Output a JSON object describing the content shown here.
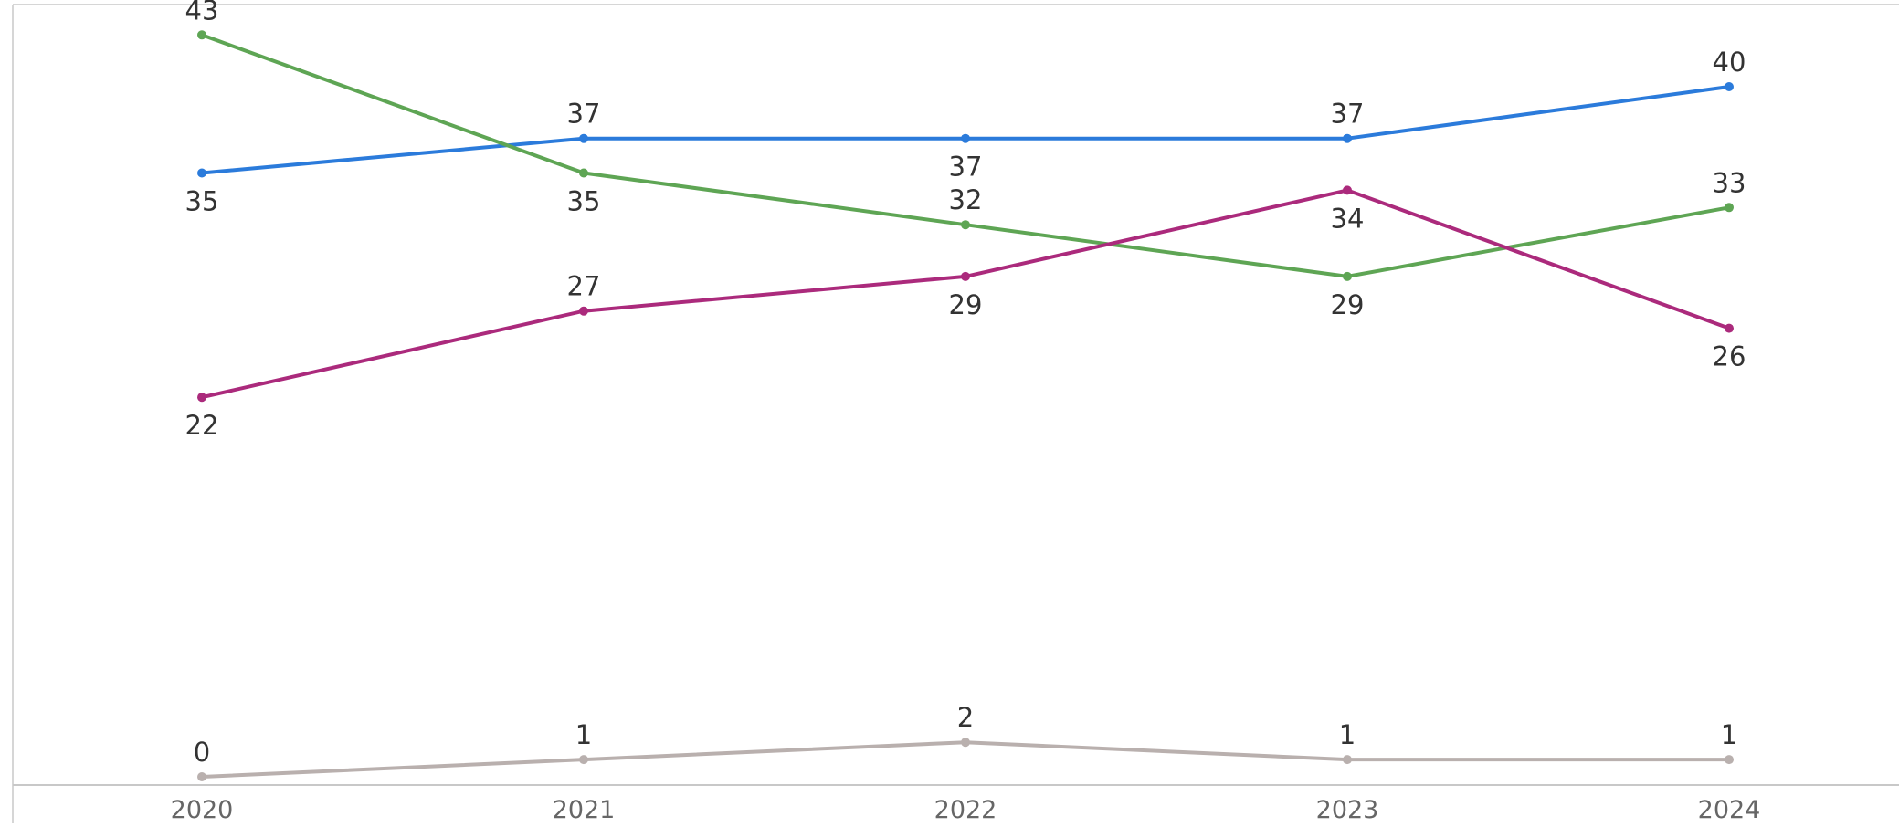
{
  "chart_data": {
    "type": "line",
    "categories": [
      "2020",
      "2021",
      "2022",
      "2023",
      "2024"
    ],
    "ylim": [
      0,
      45
    ],
    "grid": false,
    "title": "",
    "xlabel": "",
    "ylabel": "",
    "series": [
      {
        "color": "#2b7bdb",
        "values": [
          35,
          37,
          37,
          37,
          40
        ],
        "label_positions": [
          "below",
          "above",
          "below",
          "above",
          "above"
        ]
      },
      {
        "color": "#5ea554",
        "values": [
          43,
          35,
          32,
          29,
          33
        ],
        "label_positions": [
          "above",
          "below",
          "above",
          "below",
          "above"
        ]
      },
      {
        "color": "#ab2a7c",
        "values": [
          22,
          27,
          29,
          34,
          26
        ],
        "label_positions": [
          "below",
          "above",
          "below",
          "below",
          "below"
        ]
      },
      {
        "color": "#b9b0ae",
        "values": [
          0,
          1,
          2,
          1,
          1
        ],
        "label_positions": [
          "above",
          "above",
          "above",
          "above",
          "above"
        ]
      }
    ]
  }
}
